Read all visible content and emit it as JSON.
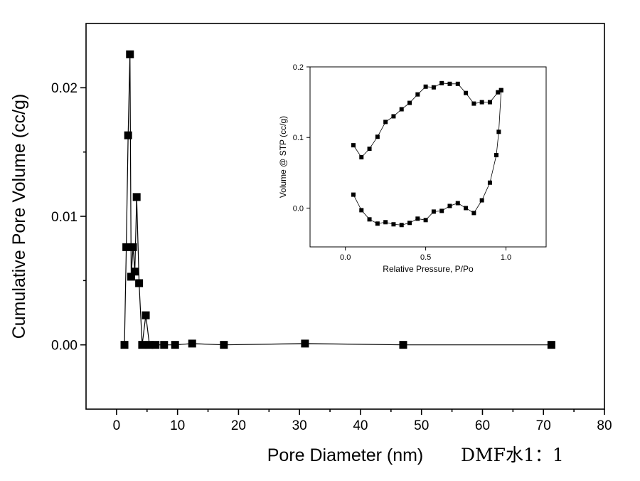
{
  "chart_data": [
    {
      "type": "line",
      "xlabel": "Pore Diameter (nm)",
      "ylabel": "Cumulative Pore Volume (cc/g)",
      "xlim": [
        -5,
        80
      ],
      "ylim": [
        -0.005,
        0.025
      ],
      "x_ticks": [
        0,
        10,
        20,
        30,
        40,
        50,
        60,
        70,
        80
      ],
      "y_ticks": [
        0.0,
        0.01,
        0.02
      ],
      "x_tick_labels": [
        "0",
        "10",
        "20",
        "30",
        "40",
        "50",
        "60",
        "70",
        "80"
      ],
      "y_tick_labels": [
        "0.00",
        "0.01",
        "0.02"
      ],
      "grid": false,
      "marker": "square",
      "series": [
        {
          "x": [
            1.3,
            1.6,
            1.9,
            2.2,
            2.4,
            2.7,
            3.0,
            3.3,
            3.7,
            4.2,
            4.8,
            5.4,
            6.4,
            7.8,
            9.6,
            12.4,
            17.6,
            30.9,
            47.0,
            71.3
          ],
          "y": [
            0.0,
            0.0076,
            0.0163,
            0.0226,
            0.0053,
            0.0076,
            0.0057,
            0.0115,
            0.0048,
            0.0,
            0.0023,
            0.0,
            0.0,
            0.0,
            0.0,
            0.0001,
            0.0,
            0.0001,
            0.0,
            0.0
          ]
        }
      ]
    },
    {
      "type": "line",
      "xlabel": "Relative Pressure, P/Po",
      "ylabel": "Volume @ STP (cc/g)",
      "xlim": [
        -0.22,
        1.25
      ],
      "ylim": [
        -0.055,
        0.2
      ],
      "x_ticks": [
        0.0,
        0.5,
        1.0
      ],
      "y_ticks": [
        0.0,
        0.1,
        0.2
      ],
      "x_tick_labels": [
        "0.0",
        "0.5",
        "1.0"
      ],
      "y_tick_labels": [
        "0.0",
        "0.1",
        "0.2"
      ],
      "grid": false,
      "marker": "square",
      "series": [
        {
          "x": [
            0.05,
            0.1,
            0.15,
            0.2,
            0.25,
            0.3,
            0.35,
            0.4,
            0.45,
            0.5,
            0.55,
            0.6,
            0.65,
            0.7,
            0.75,
            0.8,
            0.85,
            0.9,
            0.94,
            0.955,
            0.97
          ],
          "y": [
            0.019,
            -0.003,
            -0.016,
            -0.022,
            -0.02,
            -0.023,
            -0.024,
            -0.021,
            -0.015,
            -0.017,
            -0.005,
            -0.004,
            0.003,
            0.007,
            0.0,
            -0.007,
            0.011,
            0.036,
            0.075,
            0.108,
            0.167
          ]
        },
        {
          "x": [
            0.05,
            0.1,
            0.15,
            0.2,
            0.25,
            0.3,
            0.35,
            0.4,
            0.45,
            0.5,
            0.55,
            0.6,
            0.65,
            0.7,
            0.75,
            0.8,
            0.85,
            0.9,
            0.95,
            0.97
          ],
          "y": [
            0.089,
            0.072,
            0.084,
            0.101,
            0.122,
            0.13,
            0.14,
            0.149,
            0.161,
            0.172,
            0.171,
            0.177,
            0.176,
            0.176,
            0.163,
            0.148,
            0.15,
            0.15,
            0.164,
            0.167
          ]
        }
      ]
    }
  ],
  "annotation": "DMF水1：1"
}
